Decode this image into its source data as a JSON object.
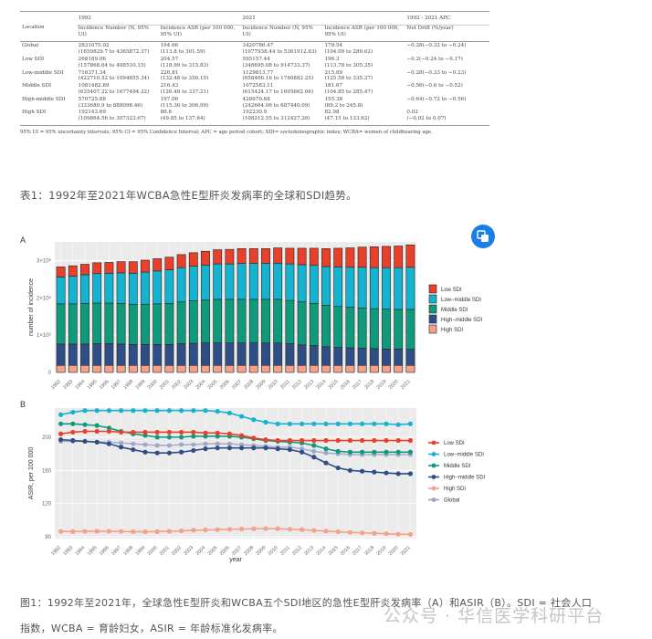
{
  "table": {
    "year_headers": [
      "1992",
      "2021",
      "1992 - 2021 APC"
    ],
    "columns": [
      "Location",
      "Incidence Number (N, 95% UI)",
      "Incidence ASR (per 100 000, 95% UI)",
      "Incidence Number (N, 95% UI)",
      "Incidence ASR (per 100 000, 95% UI)",
      "Net Drift (%/year)"
    ],
    "rows": [
      {
        "loc": "Global",
        "n1992": "2831075.02",
        "n1992ui": "(1659829.7 to 4365872.37)",
        "a1992": "194.66",
        "a1992ui": "(113.8 to 301.59)",
        "n2021": "3420786.47",
        "n2021ui": "(1977938.44 to 5361912.83)",
        "a2021": "179.54",
        "a2021ui": "(104.09 to 280.62)",
        "drift": "−0.28(−0.32 to −0.24)",
        "drift2": ""
      },
      {
        "loc": "Low SDI",
        "n1992": "268189.06",
        "n1992ui": "(157868.64 to 408510.15)",
        "a1992": "204.57",
        "a1992ui": "(118.99 to 315.83)",
        "n2021": "595157.44",
        "n2021ui": "(348695.08 to 914733.37)",
        "a2021": "196.3",
        "a2021ui": "(113.78 to 305.35)",
        "drift": "−0.2(−0.24 to −0.17)",
        "drift2": ""
      },
      {
        "loc": "Low-middle SDI",
        "n1992": "716371.34",
        "n1992ui": "(422710.52 to 1094855.34)",
        "a1992": "226.81",
        "a1992ui": "(132.48 to 350.15)",
        "n2021": "1129813.77",
        "n2021ui": "(658466.16 to 1740882.25)",
        "a2021": "215.89",
        "a2021ui": "(125.58 to 335.37)",
        "drift": "−0.28(−0.33 to −0.23)",
        "drift2": ""
      },
      {
        "loc": "Middle SDI",
        "n1992": "1081482.89",
        "n1992ui": "(635407.22 to 1677494.22)",
        "a1992": "216.43",
        "a1992ui": "(126.48 to 337.21)",
        "n2021": "1072583.11",
        "n2021ui": "(615424.17 to 1695662.06)",
        "a2021": "181.67",
        "a2021ui": "(104.85 to 285.47)",
        "drift": "−0.56(−0.6 to −0.52)",
        "drift2": ""
      },
      {
        "loc": "High-middle SDI",
        "n1992": "570725.88",
        "n1992ui": "(333680.9 to 888098.46)",
        "a1992": "197.06",
        "a1992ui": "(115.36 to 306.99)",
        "n2021": "428670.68",
        "n2021ui": "(242664.06 to 687440.09)",
        "a2021": "155.38",
        "a2021ui": "(89.2 to 245.8)",
        "drift": "−0.64(−0.72 to −0.56)",
        "drift2": ""
      },
      {
        "loc": "High SDI",
        "n1992": "192143.69",
        "n1992ui": "(109864.56 to 307323.67)",
        "a1992": "86.6",
        "a1992ui": "(49.85 to 137.64)",
        "n2021": "192230.9",
        "n2021ui": "(108212.55 to 312427.26)",
        "a2021": "82.98",
        "a2021ui": "(47.15 to 133.62)",
        "drift": "0.02",
        "drift2": "(−0.02 to 0.07)"
      }
    ],
    "note": "95% UI = 95% uncertainty intervals; 95% CI = 95% Confidence Interval; APC = age period cohort; SDI= sociodemographic index; WCBA= women of childbearing age."
  },
  "table_caption": "表1：1992年至2021年WCBA急性E型肝炎发病率的全球和SDI趋势。",
  "figure_caption_line1": "图1：1992年至2021年，全球急性E型肝炎和WCBA五个SDI地区的急性E型肝炎发病率（A）和ASIR（B）。SDI = 社会人口",
  "figure_caption_line2": "指数，WCBA = 育龄妇女，ASIR = 年龄标准化发病率。",
  "watermark": "公众号 · 华信医学科研平台",
  "icon_button": "translate-icon",
  "chart_data": [
    {
      "type": "bar",
      "stacked": true,
      "panel": "A",
      "ylabel": "number of incidence",
      "ylim": [
        0,
        3500000
      ],
      "yticks": [
        "0",
        "1×10⁶",
        "2×10⁶",
        "3×10⁶"
      ],
      "ytick_values": [
        0,
        1000000,
        2000000,
        3000000
      ],
      "categories": [
        "1992",
        "1993",
        "1994",
        "1995",
        "1996",
        "1997",
        "1998",
        "1999",
        "2000",
        "2001",
        "2002",
        "2003",
        "2004",
        "2005",
        "2006",
        "2007",
        "2008",
        "2009",
        "2010",
        "2011",
        "2012",
        "2013",
        "2014",
        "2015",
        "2016",
        "2017",
        "2018",
        "2019",
        "2020",
        "2021"
      ],
      "grid": true,
      "legend": "right",
      "series": [
        {
          "name": "High SDI",
          "color": "#f4a08a",
          "values": [
            0.19,
            0.19,
            0.19,
            0.19,
            0.19,
            0.19,
            0.19,
            0.19,
            0.19,
            0.19,
            0.19,
            0.19,
            0.19,
            0.19,
            0.19,
            0.19,
            0.19,
            0.19,
            0.19,
            0.19,
            0.19,
            0.19,
            0.19,
            0.19,
            0.19,
            0.19,
            0.19,
            0.19,
            0.19,
            0.19
          ]
        },
        {
          "name": "High−middle SDI",
          "color": "#2f4e86",
          "values": [
            0.57,
            0.57,
            0.57,
            0.58,
            0.58,
            0.57,
            0.56,
            0.56,
            0.56,
            0.56,
            0.58,
            0.59,
            0.6,
            0.6,
            0.6,
            0.6,
            0.6,
            0.6,
            0.6,
            0.58,
            0.55,
            0.53,
            0.5,
            0.48,
            0.47,
            0.46,
            0.45,
            0.44,
            0.44,
            0.43
          ]
        },
        {
          "name": "Middle SDI",
          "color": "#0f9a7c",
          "values": [
            1.08,
            1.08,
            1.09,
            1.09,
            1.09,
            1.09,
            1.08,
            1.08,
            1.09,
            1.1,
            1.12,
            1.14,
            1.15,
            1.17,
            1.17,
            1.17,
            1.17,
            1.17,
            1.17,
            1.16,
            1.15,
            1.13,
            1.11,
            1.1,
            1.09,
            1.08,
            1.07,
            1.07,
            1.06,
            1.07
          ]
        },
        {
          "name": "Low−middle SDI",
          "color": "#14b3cf",
          "values": [
            0.72,
            0.74,
            0.77,
            0.79,
            0.8,
            0.82,
            0.83,
            0.86,
            0.88,
            0.9,
            0.92,
            0.93,
            0.94,
            0.95,
            0.95,
            0.96,
            0.96,
            0.96,
            0.97,
            0.98,
            1.0,
            1.02,
            1.04,
            1.06,
            1.07,
            1.09,
            1.1,
            1.11,
            1.12,
            1.13
          ]
        },
        {
          "name": "Low SDI",
          "color": "#e8402a",
          "values": [
            0.27,
            0.28,
            0.28,
            0.29,
            0.29,
            0.3,
            0.31,
            0.32,
            0.33,
            0.34,
            0.35,
            0.36,
            0.37,
            0.38,
            0.39,
            0.4,
            0.4,
            0.4,
            0.41,
            0.42,
            0.44,
            0.46,
            0.48,
            0.5,
            0.52,
            0.54,
            0.56,
            0.57,
            0.58,
            0.6
          ]
        }
      ],
      "value_unit_multiplier": 1000000
    },
    {
      "type": "line",
      "panel": "B",
      "xlabel": "year",
      "ylabel": "ASIR, per 100 000",
      "ylim": [
        78,
        235
      ],
      "yticks": [
        80,
        120,
        160,
        200
      ],
      "grid": true,
      "legend": "right",
      "categories": [
        "1992",
        "1993",
        "1994",
        "1995",
        "1996",
        "1997",
        "1998",
        "1999",
        "2000",
        "2001",
        "2002",
        "2003",
        "2004",
        "2005",
        "2006",
        "2007",
        "2008",
        "2009",
        "2010",
        "2011",
        "2012",
        "2013",
        "2014",
        "2015",
        "2016",
        "2017",
        "2018",
        "2019",
        "2020",
        "2021"
      ],
      "series": [
        {
          "name": "Low SDI",
          "color": "#e8402a",
          "values": [
            204,
            206,
            207,
            207,
            207,
            206,
            206,
            206,
            206,
            206,
            206,
            206,
            205,
            205,
            204,
            202,
            199,
            197,
            196,
            196,
            196,
            196,
            196,
            196,
            196,
            196,
            196,
            196,
            196,
            196
          ]
        },
        {
          "name": "Low−middle SDI",
          "color": "#14b3cf",
          "values": [
            227,
            230,
            232,
            232,
            232,
            232,
            232,
            232,
            232,
            232,
            232,
            232,
            232,
            231,
            229,
            225,
            221,
            218,
            216,
            216,
            216,
            216,
            216,
            216,
            216,
            216,
            216,
            216,
            215,
            216
          ]
        },
        {
          "name": "Middle SDI",
          "color": "#0f9a7c",
          "values": [
            216,
            216,
            215,
            214,
            211,
            207,
            204,
            202,
            200,
            200,
            200,
            201,
            201,
            201,
            201,
            200,
            198,
            196,
            195,
            194,
            193,
            190,
            186,
            183,
            182,
            182,
            182,
            182,
            182,
            182
          ]
        },
        {
          "name": "High−middle SDI",
          "color": "#2f4e86",
          "values": [
            197,
            196,
            195,
            194,
            192,
            188,
            185,
            182,
            181,
            181,
            182,
            184,
            186,
            187,
            187,
            187,
            187,
            187,
            186,
            185,
            182,
            176,
            169,
            163,
            160,
            159,
            158,
            157,
            156,
            156
          ]
        },
        {
          "name": "High SDI",
          "color": "#f4a08a",
          "values": [
            86.6,
            86.5,
            86.7,
            86.9,
            86.8,
            86.6,
            86.3,
            86.2,
            86.4,
            86.8,
            87.3,
            88.0,
            88.4,
            88.8,
            89.2,
            89.5,
            89.8,
            90.0,
            89.9,
            89.3,
            88.7,
            87.8,
            87.0,
            86.2,
            85.5,
            84.9,
            84.3,
            83.8,
            83.3,
            83.0
          ]
        },
        {
          "name": "Global",
          "color": "#9aa3c8",
          "values": [
            195,
            195,
            195,
            194,
            194,
            193,
            192,
            191,
            190,
            190,
            191,
            191,
            192,
            192,
            192,
            191,
            190,
            189,
            188,
            188,
            186,
            183,
            181,
            180,
            179,
            179,
            179,
            179,
            179,
            179
          ]
        }
      ]
    }
  ]
}
